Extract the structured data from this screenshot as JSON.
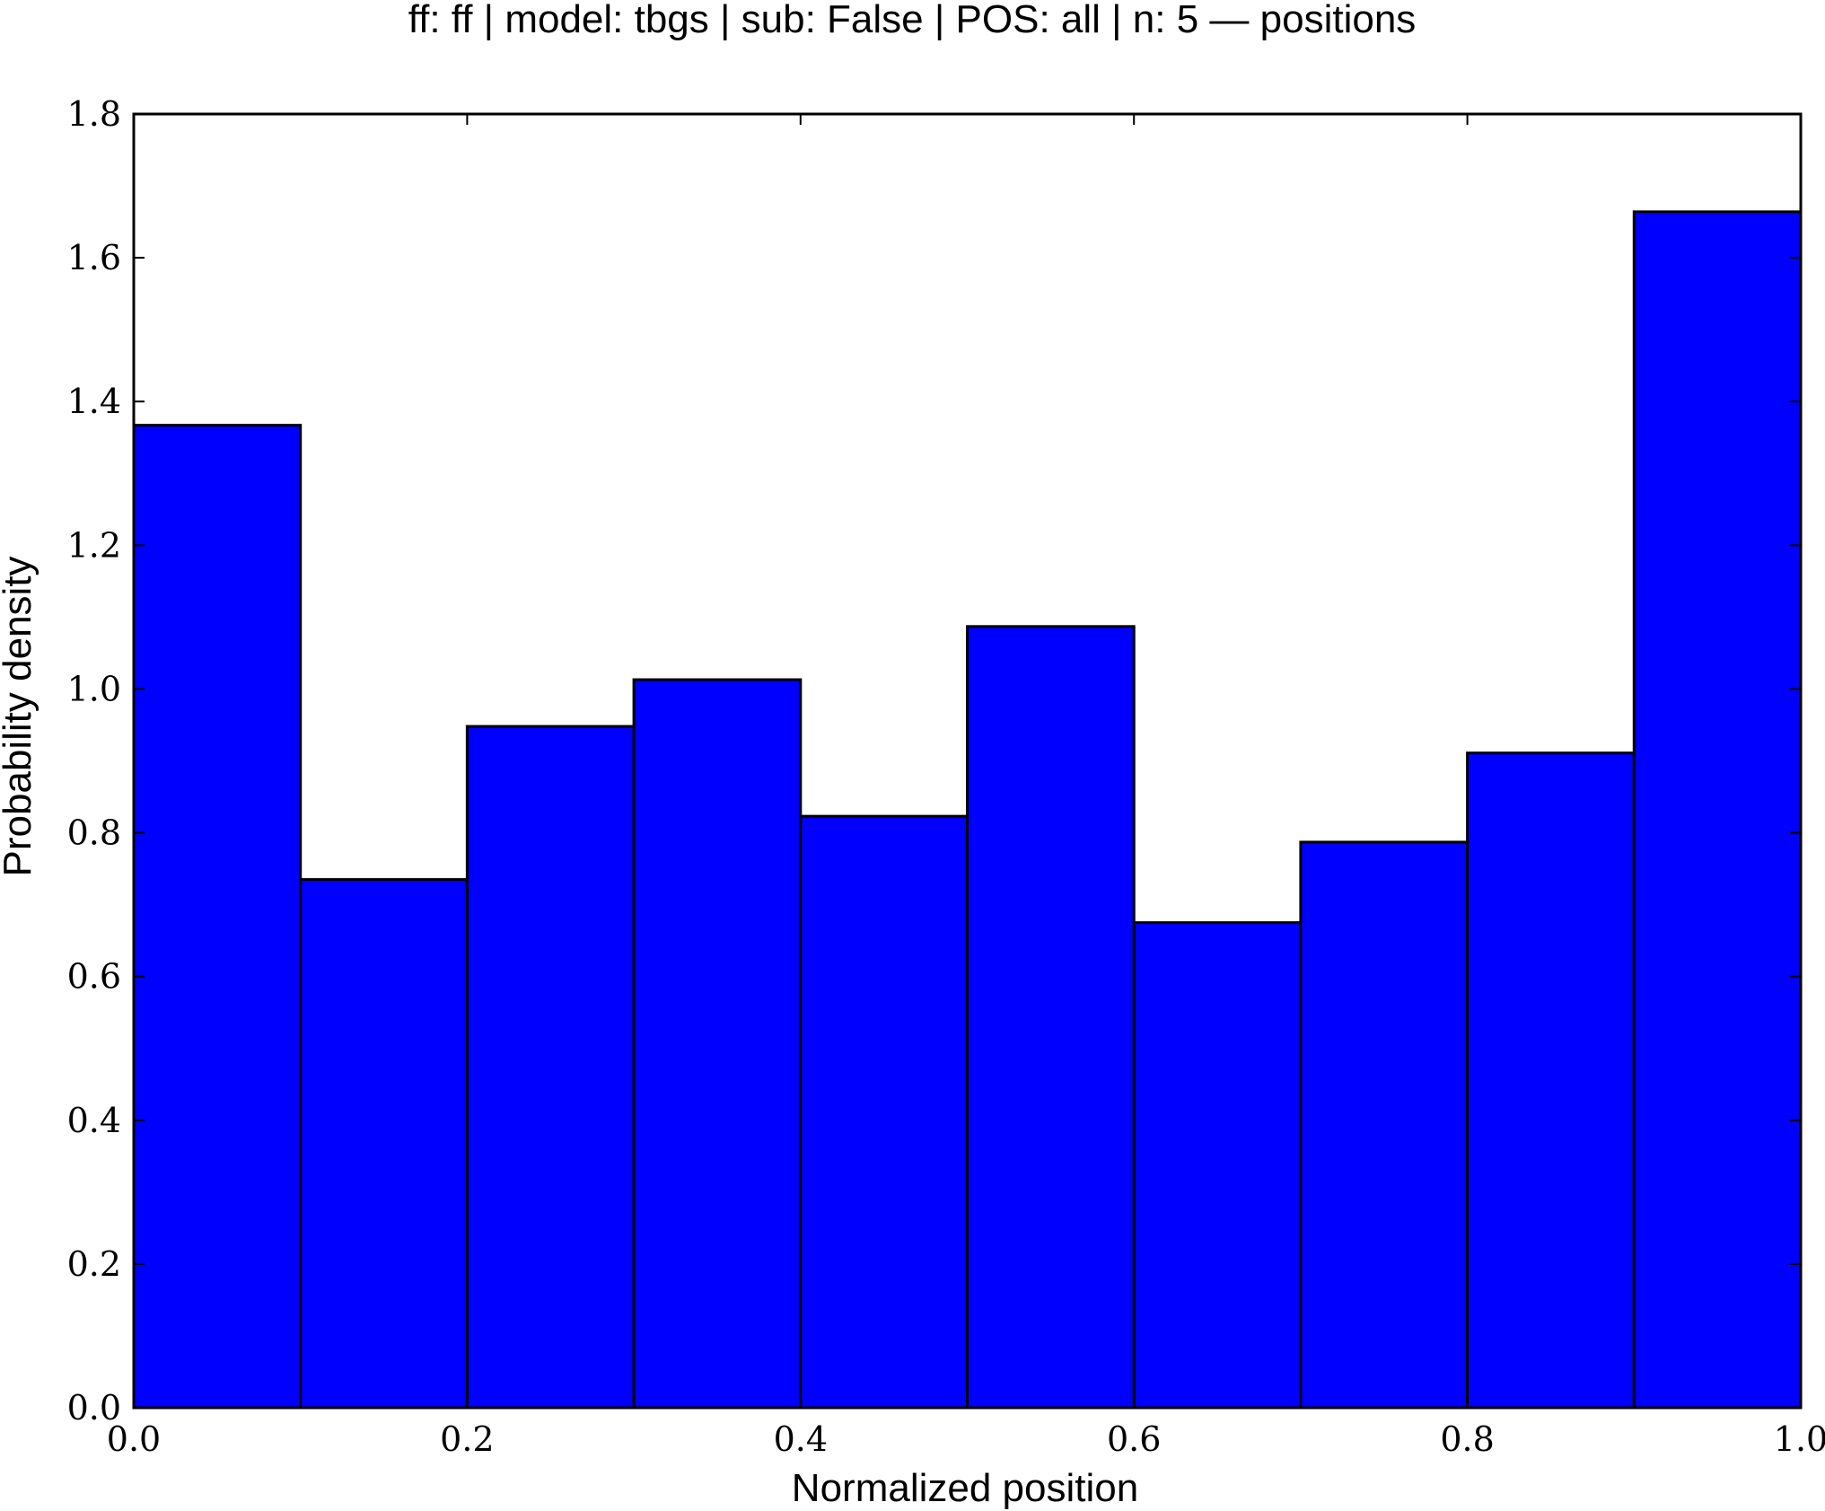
{
  "chart_data": {
    "type": "bar",
    "title": "ff: ff | model: tbgs | sub: False | POS: all | n: 5 — positions",
    "xlabel": "Normalized position",
    "ylabel": "Probability density",
    "xlim": [
      0.0,
      1.0
    ],
    "ylim": [
      0.0,
      1.8
    ],
    "xticks": [
      "0.0",
      "0.2",
      "0.4",
      "0.6",
      "0.8",
      "1.0"
    ],
    "yticks": [
      "0.0",
      "0.2",
      "0.4",
      "0.6",
      "0.8",
      "1.0",
      "1.2",
      "1.4",
      "1.6",
      "1.8"
    ],
    "bin_edges": [
      0.0,
      0.1,
      0.2,
      0.3,
      0.4,
      0.5,
      0.6,
      0.7,
      0.8,
      0.9,
      1.0
    ],
    "values": [
      1.367,
      0.735,
      0.948,
      1.013,
      0.823,
      1.087,
      0.675,
      0.787,
      0.911,
      1.664
    ],
    "bar_color": "#0000ff",
    "edge_color": "#000000",
    "grid": false
  }
}
